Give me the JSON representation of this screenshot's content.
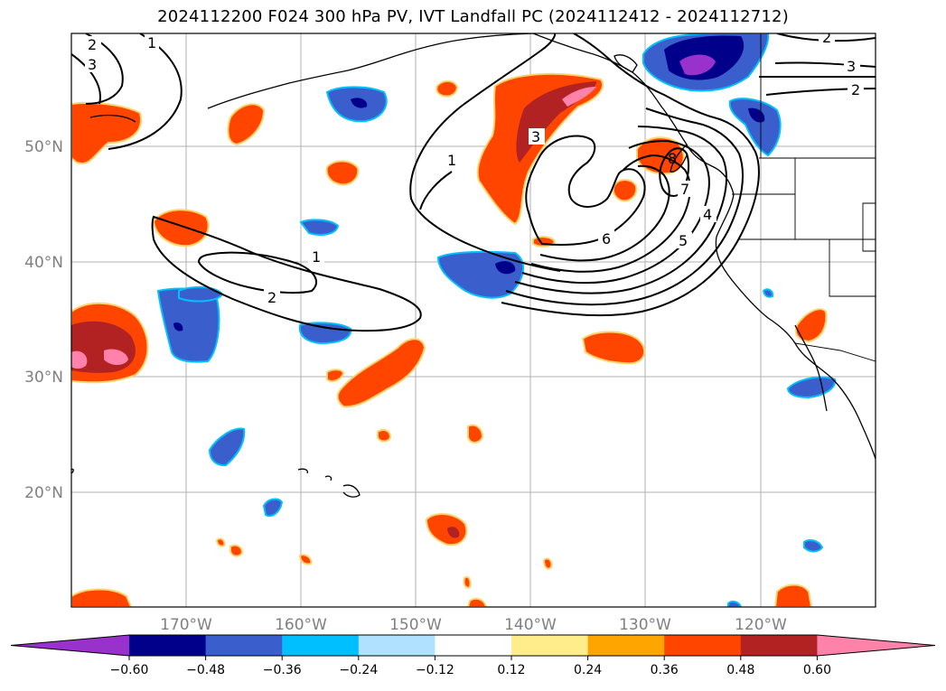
{
  "title": "2024112200 F024 300 hPa PV, IVT Landfall PC (2024112412 - 2024112712)",
  "chart_data": {
    "type": "map",
    "title": "2024112200 F024 300 hPa PV, IVT Landfall PC (2024112412 - 2024112712)",
    "lon_labels": [
      "170°W",
      "160°W",
      "150°W",
      "140°W",
      "130°W",
      "120°W"
    ],
    "lat_labels": [
      "50°N",
      "40°N",
      "30°N",
      "20°N"
    ],
    "colorbar": {
      "tick_labels": [
        "−0.60",
        "−0.48",
        "−0.36",
        "−0.24",
        "−0.12",
        "0.12",
        "0.24",
        "0.36",
        "0.48",
        "0.60"
      ],
      "colors": [
        "#9932cc",
        "#00008b",
        "#3a5fcd",
        "#00bfff",
        "#b0e2ff",
        "#ffffff",
        "#ffec8b",
        "#ffa500",
        "#ff4500",
        "#b22222",
        "#ff82ab"
      ]
    },
    "contour_labels": [
      "1",
      "2",
      "3",
      "1",
      "2",
      "1",
      "3",
      "4",
      "5",
      "6",
      "7",
      "8",
      "2",
      "3",
      "2"
    ]
  }
}
